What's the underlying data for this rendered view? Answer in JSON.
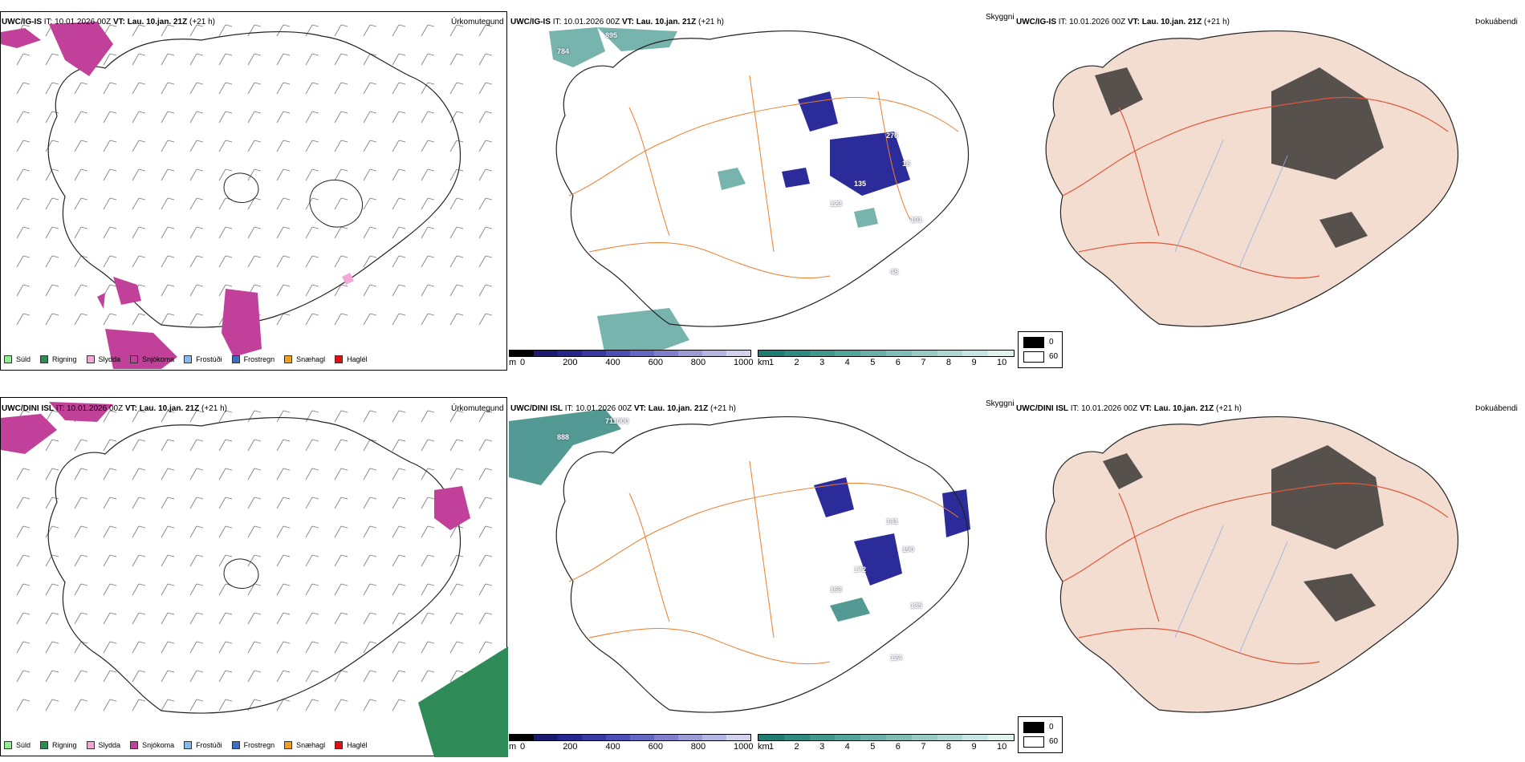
{
  "rows": [
    {
      "model": "UWC/IG-IS",
      "it_label": "IT:",
      "it_value": "10.01.2026 00Z",
      "vt_label": "VT:",
      "vt_value": "Lau. 10.jan. 21Z",
      "lead": "(+21 h)",
      "precip_title": "Úrkomutegund",
      "vis_title": "Skyggni",
      "cloud_title": "Þokuábendi",
      "vis_labels": [
        "895",
        "784",
        "270",
        "18",
        "135",
        "123",
        "101",
        "48"
      ]
    },
    {
      "model": "UWC/DINI ISL",
      "it_label": "IT:",
      "it_value": "10.01.2026 00Z",
      "vt_label": "VT:",
      "vt_value": "Lau. 10.jan. 21Z",
      "lead": "(+21 h)",
      "precip_title": "Úrkomutegund",
      "vis_title": "Skyggni",
      "cloud_title": "Þokuábendi",
      "vis_labels": [
        "711000",
        "888",
        "141",
        "190",
        "172",
        "168",
        "135",
        "124"
      ]
    }
  ],
  "precip_legend": [
    {
      "label": "Súld",
      "color": "#90ee90"
    },
    {
      "label": "Rigning",
      "color": "#2e8b57"
    },
    {
      "label": "Slydda",
      "color": "#f4a6d7"
    },
    {
      "label": "Snjókoma",
      "color": "#c0409a"
    },
    {
      "label": "Frostúði",
      "color": "#87b9ef"
    },
    {
      "label": "Frostregn",
      "color": "#3a6fc4"
    },
    {
      "label": "Snæhagl",
      "color": "#f0a020"
    },
    {
      "label": "Haglél",
      "color": "#e01010"
    }
  ],
  "ceiling_bar": {
    "unit": "m",
    "ticks": [
      "0",
      "200",
      "400",
      "600",
      "800",
      "1000"
    ],
    "colors": [
      "#000000",
      "#1a1a6e",
      "#26268c",
      "#3838a3",
      "#4d4db5",
      "#6565c2",
      "#7f7fcc",
      "#9b9bd6",
      "#b6b6e0",
      "#d2d2ec"
    ]
  },
  "visibility_bar": {
    "unit": "km",
    "ticks": [
      "1",
      "2",
      "3",
      "4",
      "5",
      "6",
      "7",
      "8",
      "9",
      "10"
    ],
    "colors": [
      "#1f7d74",
      "#2f8a81",
      "#3f978e",
      "#53a49b",
      "#69b1a8",
      "#80beb6",
      "#97cbc4",
      "#afd8d2",
      "#c7e5e1",
      "#e0f2f0"
    ]
  },
  "cloud_legend": {
    "low": "0",
    "high": "60"
  }
}
